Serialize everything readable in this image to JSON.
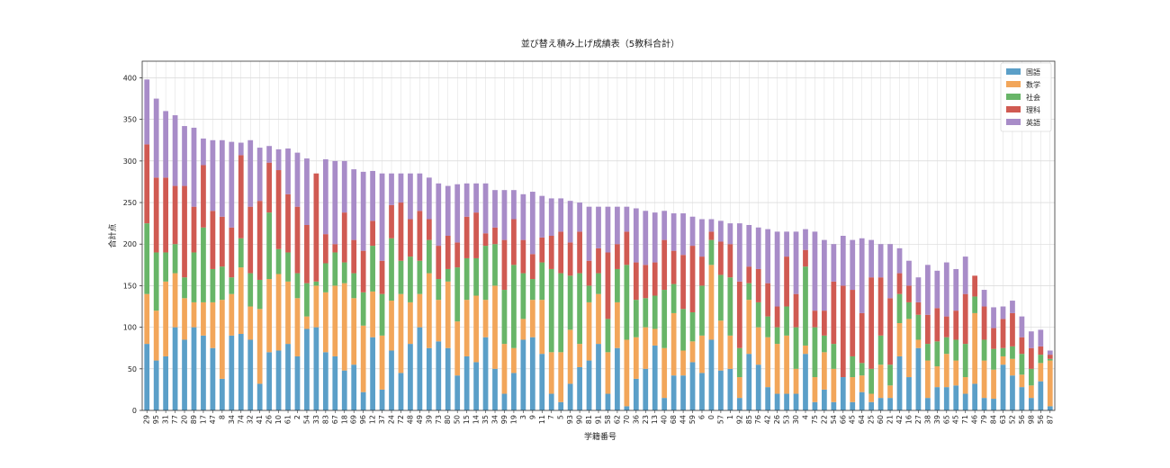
{
  "chart_data": {
    "type": "bar",
    "stacked": true,
    "title": "並び替え積み上げ成績表（5教科合計）",
    "xlabel": "学籍番号",
    "ylabel": "合計点",
    "ylim": [
      0,
      420
    ],
    "yticks": [
      0,
      50,
      100,
      150,
      200,
      250,
      300,
      350,
      400
    ],
    "grid": true,
    "legend_position": "top-right",
    "categories": [
      "29",
      "95",
      "31",
      "77",
      "20",
      "89",
      "17",
      "47",
      "8",
      "34",
      "74",
      "32",
      "41",
      "26",
      "10",
      "61",
      "2",
      "54",
      "33",
      "83",
      "67",
      "18",
      "69",
      "96",
      "12",
      "37",
      "24",
      "72",
      "48",
      "49",
      "39",
      "73",
      "80",
      "50",
      "15",
      "14",
      "35",
      "34",
      "99",
      "19",
      "3",
      "9",
      "11",
      "7",
      "5",
      "93",
      "90",
      "81",
      "91",
      "58",
      "62",
      "70",
      "36",
      "23",
      "13",
      "40",
      "68",
      "44",
      "59",
      "6",
      "0",
      "57",
      "1",
      "92",
      "85",
      "76",
      "42",
      "26",
      "53",
      "30",
      "4",
      "75",
      "22",
      "54",
      "66",
      "45",
      "64",
      "25",
      "60",
      "21",
      "42",
      "16",
      "27",
      "38",
      "39",
      "65",
      "45",
      "71",
      "46",
      "79",
      "84",
      "63",
      "52",
      "56",
      "98",
      "56",
      "87"
    ],
    "series": [
      {
        "name": "国語",
        "color": "#5b9fc8",
        "values": [
          80,
          60,
          65,
          100,
          85,
          100,
          90,
          75,
          38,
          90,
          92,
          85,
          32,
          70,
          72,
          80,
          65,
          98,
          100,
          70,
          65,
          48,
          55,
          22,
          88,
          25,
          72,
          45,
          80,
          100,
          75,
          83,
          75,
          42,
          65,
          58,
          88,
          50,
          20,
          45,
          85,
          88,
          68,
          20,
          10,
          32,
          52,
          60,
          80,
          20,
          75,
          5,
          38,
          50,
          78,
          15,
          42,
          42,
          58,
          45,
          85,
          48,
          50,
          15,
          68,
          55,
          28,
          20,
          20,
          20,
          68,
          10,
          25,
          10,
          40,
          10,
          22,
          10,
          15,
          15,
          65,
          40,
          75,
          15,
          28,
          28,
          30,
          20,
          32,
          15,
          14,
          55,
          42,
          28,
          15,
          35,
          5
        ]
      },
      {
        "name": "数学",
        "color": "#f2a65a",
        "values": [
          60,
          60,
          90,
          65,
          50,
          30,
          40,
          55,
          95,
          50,
          80,
          40,
          90,
          88,
          92,
          75,
          70,
          15,
          50,
          72,
          85,
          105,
          80,
          80,
          55,
          65,
          60,
          95,
          50,
          40,
          90,
          50,
          80,
          65,
          68,
          80,
          45,
          100,
          60,
          30,
          25,
          45,
          65,
          50,
          60,
          65,
          28,
          70,
          60,
          50,
          55,
          80,
          50,
          50,
          20,
          60,
          75,
          30,
          25,
          45,
          90,
          60,
          40,
          25,
          65,
          45,
          60,
          60,
          70,
          30,
          10,
          30,
          45,
          40,
          0,
          30,
          20,
          10,
          40,
          15,
          40,
          70,
          10,
          45,
          25,
          40,
          30,
          20,
          85,
          45,
          35,
          10,
          20,
          15,
          15,
          22,
          55
        ]
      },
      {
        "name": "社会",
        "color": "#68b568",
        "values": [
          85,
          70,
          35,
          35,
          25,
          60,
          90,
          40,
          40,
          20,
          35,
          40,
          35,
          80,
          30,
          35,
          30,
          40,
          5,
          35,
          40,
          25,
          30,
          40,
          55,
          50,
          75,
          40,
          55,
          40,
          40,
          25,
          15,
          65,
          50,
          45,
          65,
          50,
          65,
          100,
          55,
          25,
          45,
          100,
          95,
          65,
          85,
          20,
          25,
          40,
          40,
          90,
          45,
          35,
          40,
          70,
          35,
          50,
          35,
          60,
          30,
          55,
          70,
          35,
          20,
          30,
          25,
          20,
          35,
          50,
          95,
          60,
          20,
          30,
          0,
          25,
          15,
          30,
          35,
          25,
          35,
          20,
          30,
          20,
          30,
          20,
          25,
          40,
          20,
          25,
          25,
          10,
          15,
          25,
          20,
          10,
          2
        ]
      },
      {
        "name": "理科",
        "color": "#d05a52",
        "values": [
          95,
          90,
          90,
          70,
          110,
          55,
          75,
          70,
          60,
          60,
          100,
          80,
          95,
          60,
          95,
          70,
          80,
          70,
          130,
          35,
          10,
          60,
          40,
          50,
          30,
          40,
          40,
          70,
          45,
          60,
          25,
          40,
          40,
          30,
          50,
          55,
          15,
          20,
          60,
          55,
          40,
          30,
          30,
          40,
          50,
          40,
          50,
          30,
          30,
          80,
          30,
          40,
          45,
          40,
          40,
          60,
          40,
          65,
          80,
          35,
          10,
          40,
          40,
          80,
          20,
          40,
          40,
          25,
          60,
          40,
          20,
          20,
          30,
          75,
          110,
          80,
          60,
          110,
          70,
          80,
          25,
          20,
          15,
          35,
          40,
          25,
          35,
          60,
          25,
          40,
          25,
          35,
          40,
          20,
          25,
          10,
          5
        ]
      },
      {
        "name": "英語",
        "color": "#a88cc8",
        "values": [
          78,
          95,
          80,
          85,
          72,
          95,
          32,
          85,
          92,
          103,
          15,
          80,
          64,
          20,
          25,
          55,
          65,
          80,
          0,
          90,
          100,
          62,
          85,
          95,
          60,
          105,
          38,
          35,
          55,
          45,
          50,
          75,
          60,
          70,
          40,
          35,
          60,
          45,
          60,
          35,
          55,
          75,
          50,
          45,
          40,
          50,
          35,
          65,
          50,
          55,
          45,
          30,
          65,
          65,
          60,
          35,
          45,
          50,
          35,
          45,
          15,
          25,
          25,
          70,
          50,
          50,
          65,
          90,
          30,
          75,
          25,
          95,
          85,
          45,
          60,
          60,
          90,
          45,
          40,
          65,
          30,
          30,
          30,
          60,
          45,
          65,
          50,
          45,
          0,
          20,
          25,
          15,
          15,
          25,
          20,
          20,
          5
        ]
      }
    ]
  }
}
